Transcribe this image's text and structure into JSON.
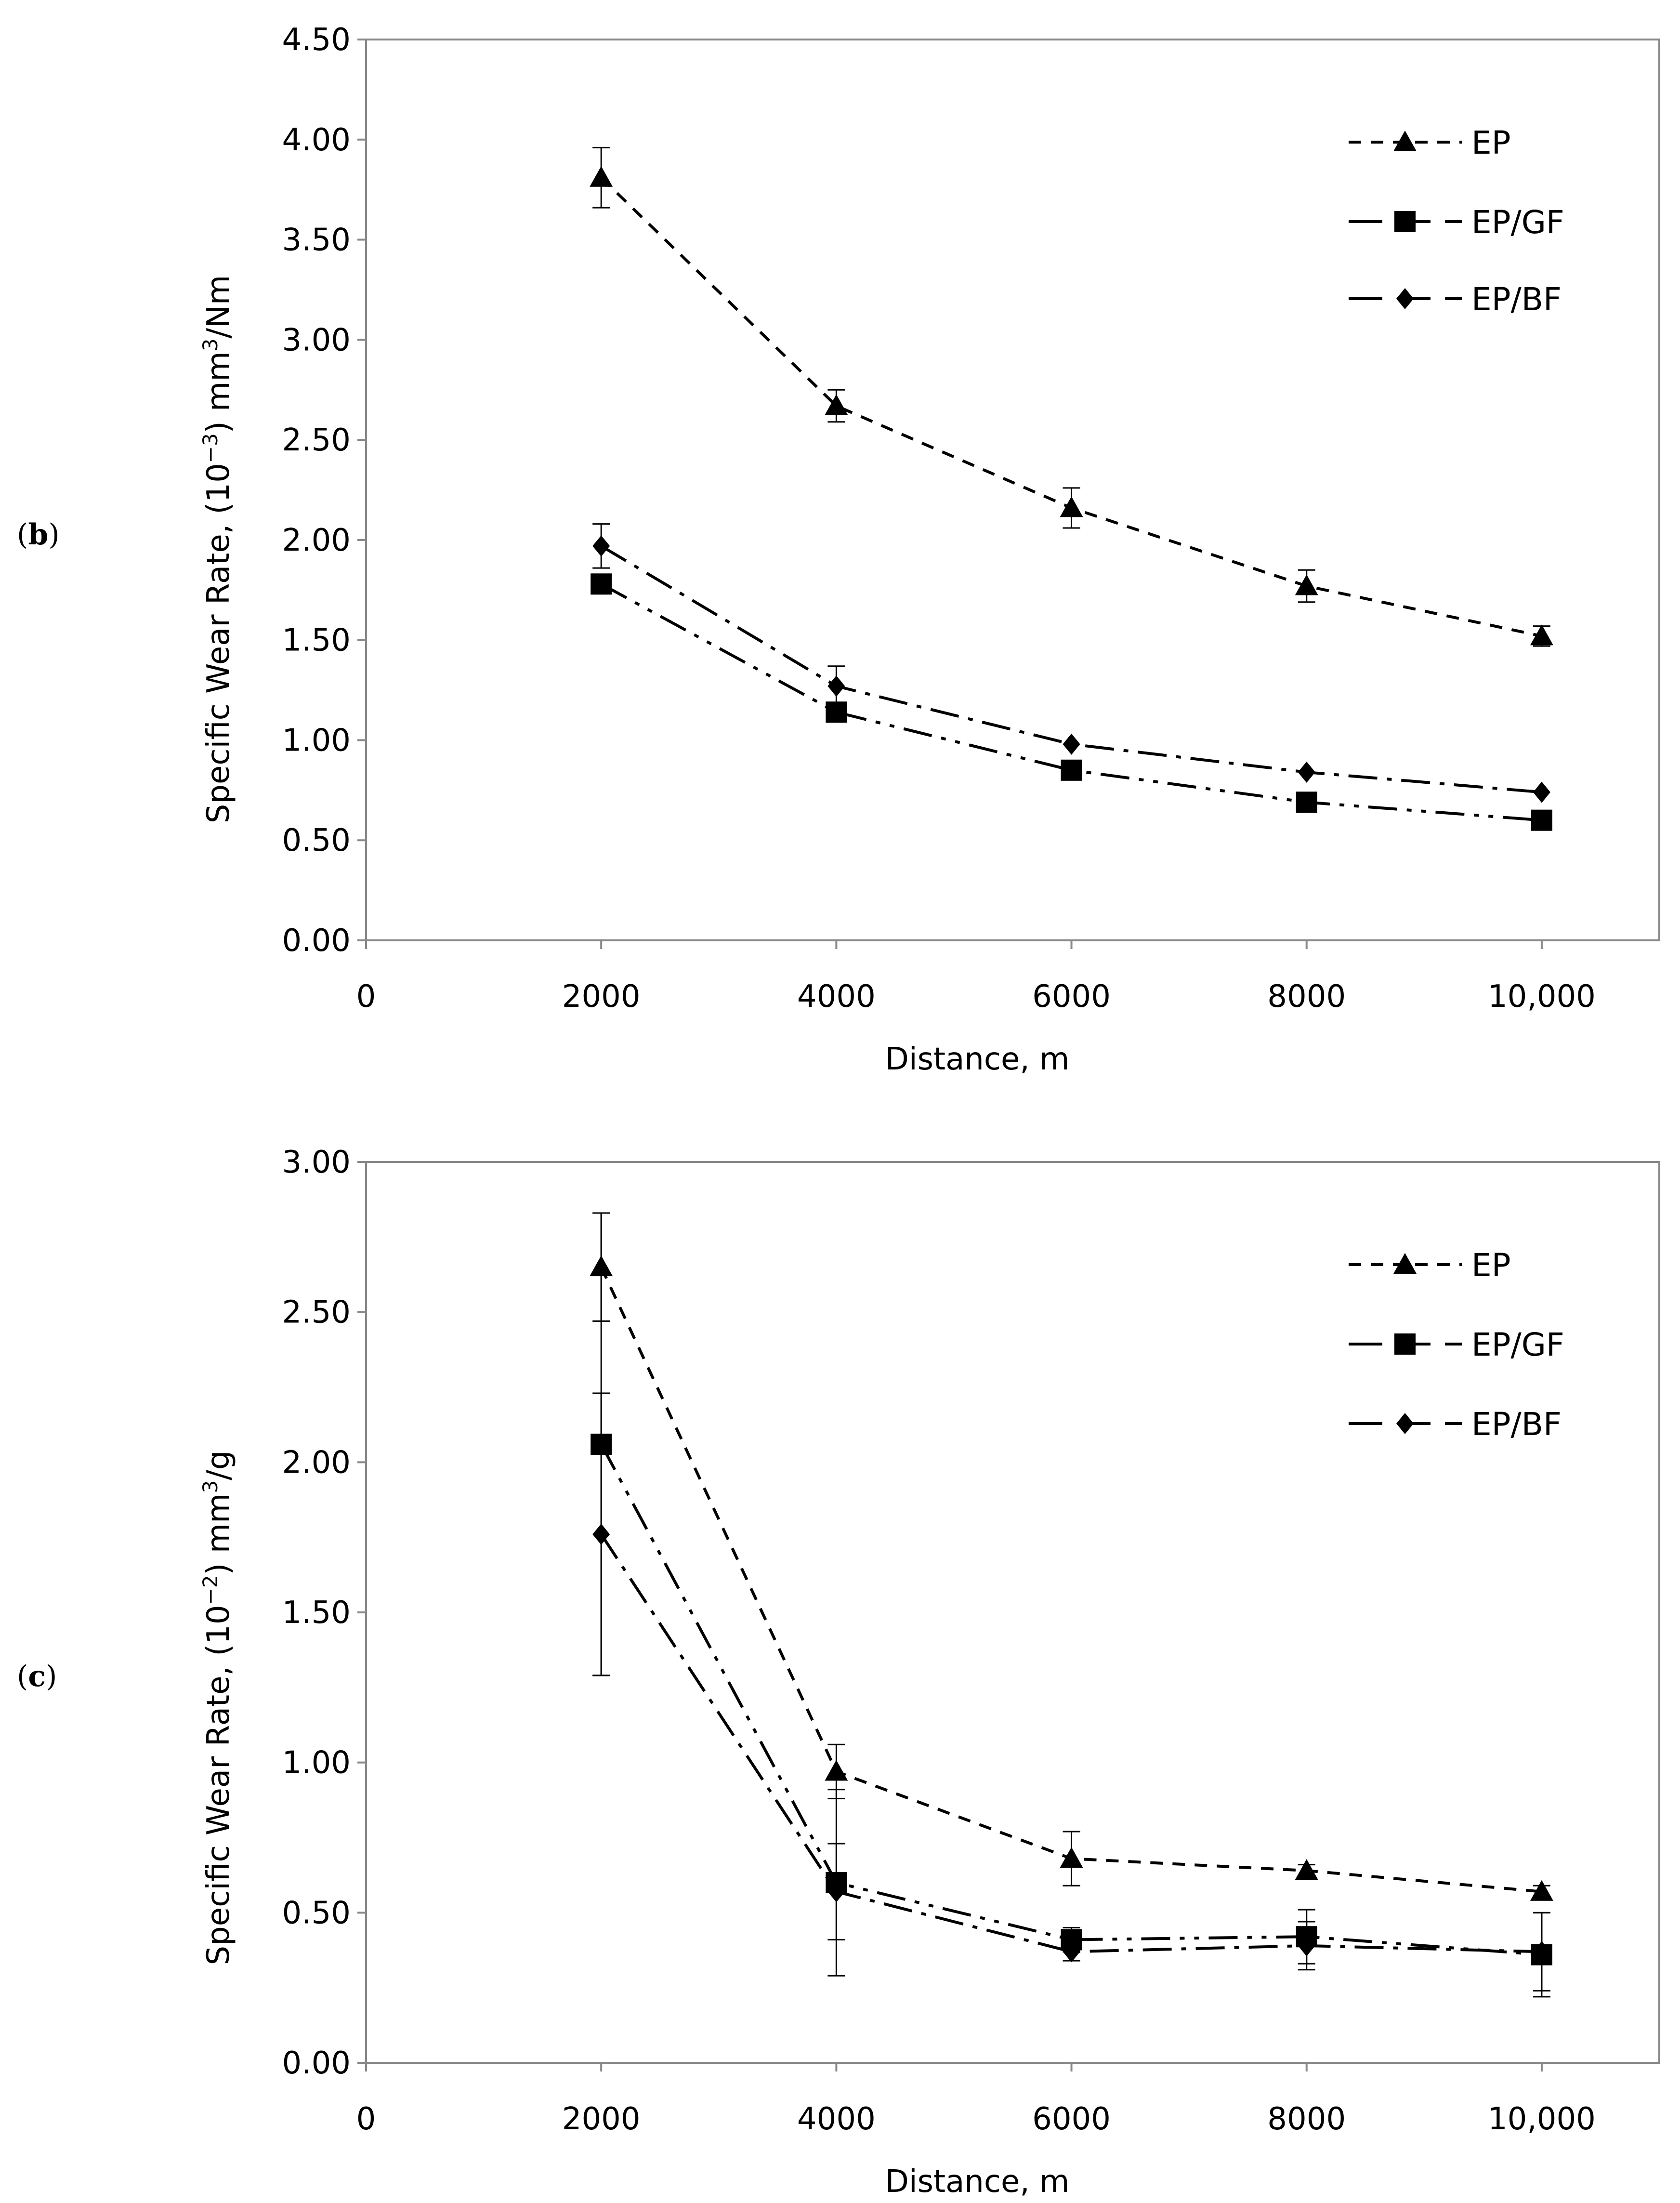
{
  "chart_data": [
    {
      "type": "line",
      "panel_label": "(b)",
      "panel_letter": "b",
      "xlabel": "Distance, m",
      "ylabel_parts": [
        "Specific Wear Rate, (10",
        "−3",
        ") mm",
        "3",
        "/Nm"
      ],
      "xlim": [
        0,
        11000
      ],
      "ylim": [
        0,
        4.5
      ],
      "xticks": [
        0,
        2000,
        4000,
        6000,
        8000,
        10000
      ],
      "xtick_labels": [
        "0",
        "2000",
        "4000",
        "6000",
        "8000",
        "10,000"
      ],
      "yticks": [
        0,
        0.5,
        1.0,
        1.5,
        2.0,
        2.5,
        3.0,
        3.5,
        4.0,
        4.5
      ],
      "ytick_labels": [
        "0.00",
        "0.50",
        "1.00",
        "1.50",
        "2.00",
        "2.50",
        "3.00",
        "3.50",
        "4.00",
        "4.50"
      ],
      "grid": false,
      "legend_position": "top-right",
      "x": [
        2000,
        4000,
        6000,
        8000,
        10000
      ],
      "series": [
        {
          "name": "EP",
          "marker": "triangle",
          "dash": "dashed",
          "values": [
            3.81,
            2.67,
            2.16,
            1.77,
            1.52
          ],
          "errors": [
            0.15,
            0.08,
            0.1,
            0.08,
            0.05
          ]
        },
        {
          "name": "EP/GF",
          "marker": "square",
          "dash": "dash-dot-dot",
          "values": [
            1.78,
            1.14,
            0.85,
            0.69,
            0.6
          ],
          "errors": [
            0,
            0,
            0,
            0,
            0
          ]
        },
        {
          "name": "EP/BF",
          "marker": "diamond",
          "dash": "dash-dot",
          "values": [
            1.97,
            1.27,
            0.98,
            0.84,
            0.74
          ],
          "errors": [
            0.11,
            0.1,
            0,
            0,
            0
          ]
        }
      ]
    },
    {
      "type": "line",
      "panel_label": "(c)",
      "panel_letter": "c",
      "xlabel": "Distance, m",
      "ylabel_parts": [
        "Specific Wear Rate, (10",
        "−2",
        ") mm",
        "3",
        "/g"
      ],
      "xlim": [
        0,
        11000
      ],
      "ylim": [
        0,
        3.0
      ],
      "xticks": [
        0,
        2000,
        4000,
        6000,
        8000,
        10000
      ],
      "xtick_labels": [
        "0",
        "2000",
        "4000",
        "6000",
        "8000",
        "10,000"
      ],
      "yticks": [
        0,
        0.5,
        1.0,
        1.5,
        2.0,
        2.5,
        3.0
      ],
      "ytick_labels": [
        "0.00",
        "0.50",
        "1.00",
        "1.50",
        "2.00",
        "2.50",
        "3.00"
      ],
      "grid": false,
      "legend_position": "top-right",
      "x": [
        2000,
        4000,
        6000,
        8000,
        10000
      ],
      "series": [
        {
          "name": "EP",
          "marker": "triangle",
          "dash": "dashed",
          "values": [
            2.65,
            0.97,
            0.68,
            0.64,
            0.57
          ],
          "errors": [
            0.18,
            0.09,
            0.09,
            0.02,
            0.02
          ]
        },
        {
          "name": "EP/GF",
          "marker": "square",
          "dash": "dash-dot-dot",
          "values": [
            2.06,
            0.6,
            0.41,
            0.42,
            0.36
          ],
          "errors": [
            0.77,
            0.31,
            0.04,
            0.09,
            0.14
          ]
        },
        {
          "name": "EP/BF",
          "marker": "diamond",
          "dash": "dash-dot",
          "values": [
            1.76,
            0.57,
            0.37,
            0.39,
            0.37
          ],
          "errors": [
            0.47,
            0.16,
            0.03,
            0.08,
            0.13
          ]
        }
      ]
    }
  ]
}
